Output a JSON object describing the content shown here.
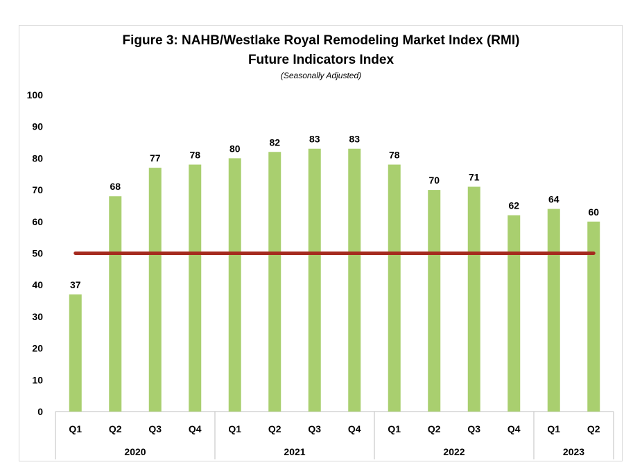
{
  "chart_data": {
    "type": "bar",
    "title": "Figure 3:  NAHB/Westlake Royal Remodeling Market Index (RMI)",
    "subtitle": "Future Indicators Index",
    "note": "(Seasonally Adjusted)",
    "categories": [
      "Q1",
      "Q2",
      "Q3",
      "Q4",
      "Q1",
      "Q2",
      "Q3",
      "Q4",
      "Q1",
      "Q2",
      "Q3",
      "Q4",
      "Q1",
      "Q2"
    ],
    "years": [
      {
        "label": "2020",
        "count": 4
      },
      {
        "label": "2021",
        "count": 4
      },
      {
        "label": "2022",
        "count": 4
      },
      {
        "label": "2023",
        "count": 2
      }
    ],
    "values": [
      37,
      68,
      77,
      78,
      80,
      82,
      83,
      83,
      78,
      70,
      71,
      62,
      64,
      60
    ],
    "ylim": [
      0,
      100
    ],
    "yticks": [
      0,
      10,
      20,
      30,
      40,
      50,
      60,
      70,
      80,
      90,
      100
    ],
    "reference_line": 50,
    "grid": false,
    "colors": {
      "bar": "#a9cf6f",
      "reference_line": "#a52a1e",
      "axis": "#bfbfbf"
    }
  }
}
